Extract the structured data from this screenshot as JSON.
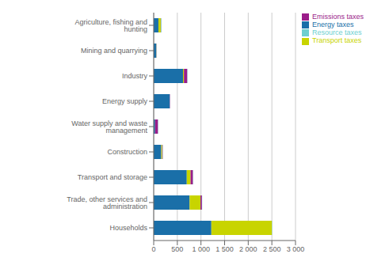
{
  "chart_data": {
    "type": "bar",
    "orientation": "horizontal",
    "stacked": true,
    "categories": [
      "Households",
      "Trade, other services and administration",
      "Transport and storage",
      "Construction",
      "Water supply and waste management",
      "Energy supply",
      "Industry",
      "Mining and quarrying",
      "Agriculture, fishing and hunting"
    ],
    "series": [
      {
        "name": "Energy taxes",
        "color": "#1a6fa8",
        "values": [
          1220,
          760,
          700,
          160,
          30,
          340,
          620,
          50,
          100
        ]
      },
      {
        "name": "Transport taxes",
        "color": "#c8d400",
        "values": [
          1280,
          230,
          80,
          20,
          0,
          0,
          20,
          5,
          50
        ]
      },
      {
        "name": "Emissions taxes",
        "color": "#9b1d8a",
        "values": [
          0,
          30,
          50,
          10,
          60,
          5,
          70,
          5,
          5
        ]
      },
      {
        "name": "Resource taxes",
        "color": "#6dcfcf",
        "values": [
          5,
          5,
          5,
          5,
          5,
          0,
          5,
          5,
          10
        ]
      }
    ],
    "xlim": [
      0,
      3000
    ],
    "xticks": [
      0,
      500,
      {
        "value": 1000,
        "label": "1 000"
      },
      {
        "value": 1500,
        "label": "1 500"
      },
      {
        "value": 2000,
        "label": "2 000"
      },
      {
        "value": 2500,
        "label": "2 500"
      },
      {
        "value": 3000,
        "label": "3 000"
      }
    ],
    "grid": true,
    "legend": "upper right"
  }
}
